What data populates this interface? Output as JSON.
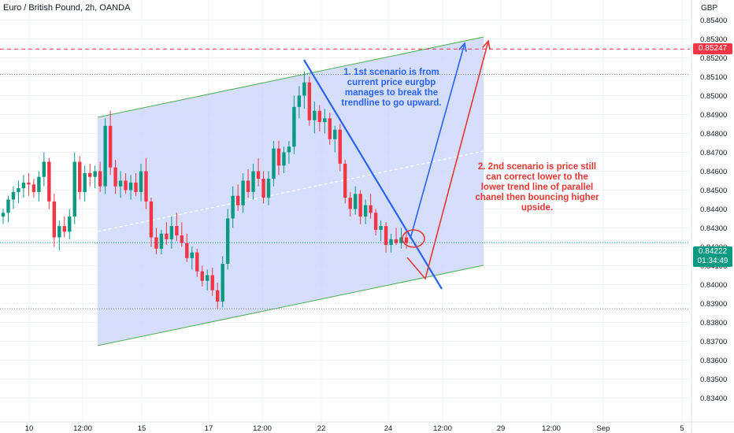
{
  "header": {
    "title": "Euro / British Pound, 2h, OANDA",
    "currency": "GBP"
  },
  "price_labels": {
    "alert_line": "0.85247",
    "current_price": "0.84222",
    "countdown": "01:34:49"
  },
  "annotations": [
    {
      "text": "1. 1st scenario is from current price eurgbp manages to break the trendline to go upward.",
      "color": "#2962ff"
    },
    {
      "text": "2. 2nd scenario is price still can correct lower to the lower trend line of parallel chanel then bouncing higher upside.",
      "color": "#e53935"
    }
  ],
  "colors": {
    "up": "#089981",
    "down": "#f23645",
    "channel_fill": "#c7d3fb",
    "channel_line": "#4caf50",
    "blue_line": "#2962ff",
    "red_line": "#e53935",
    "grid": "#f0f3fa",
    "axis_text": "#131722"
  },
  "chart_data": {
    "type": "candlestick",
    "ylim": [
      0.834,
      0.8545
    ],
    "y_ticks": [
      "0.85400",
      "0.85300",
      "0.85200",
      "0.85100",
      "0.85000",
      "0.84900",
      "0.84800",
      "0.84700",
      "0.84600",
      "0.84500",
      "0.84400",
      "0.84300",
      "0.84200",
      "0.84100",
      "0.84000",
      "0.83900",
      "0.83800",
      "0.83700",
      "0.83600",
      "0.83500",
      "0.83400"
    ],
    "x_ticks": [
      "10",
      "12:00",
      "15",
      "17",
      "12:00",
      "22",
      "24",
      "12:00",
      "29",
      "12:00",
      "Sep",
      "5"
    ],
    "price_lines": {
      "alert": 0.85247,
      "current": 0.84222,
      "high_dotted": 0.85112,
      "low_dotted": 0.83872
    },
    "candles": [
      [
        0.8436,
        0.844,
        0.8432,
        0.8438
      ],
      [
        0.8438,
        0.8447,
        0.8433,
        0.8445
      ],
      [
        0.8445,
        0.8452,
        0.844,
        0.8449
      ],
      [
        0.8449,
        0.8455,
        0.8443,
        0.8451
      ],
      [
        0.8451,
        0.8458,
        0.8446,
        0.8454
      ],
      [
        0.8454,
        0.8459,
        0.8447,
        0.8453
      ],
      [
        0.8453,
        0.8456,
        0.8446,
        0.8449
      ],
      [
        0.8449,
        0.846,
        0.8444,
        0.8457
      ],
      [
        0.8457,
        0.847,
        0.8452,
        0.8465
      ],
      [
        0.8465,
        0.8467,
        0.844,
        0.8444
      ],
      [
        0.8444,
        0.8448,
        0.842,
        0.8425
      ],
      [
        0.8425,
        0.8434,
        0.8418,
        0.8431
      ],
      [
        0.8431,
        0.8436,
        0.8425,
        0.8428
      ],
      [
        0.8428,
        0.844,
        0.8424,
        0.8436
      ],
      [
        0.8436,
        0.847,
        0.8432,
        0.8465
      ],
      [
        0.8465,
        0.8468,
        0.8445,
        0.8449
      ],
      [
        0.8449,
        0.8463,
        0.8444,
        0.8459
      ],
      [
        0.8459,
        0.8464,
        0.8452,
        0.8457
      ],
      [
        0.8457,
        0.8463,
        0.8451,
        0.846
      ],
      [
        0.846,
        0.8465,
        0.8449,
        0.8452
      ],
      [
        0.8452,
        0.8488,
        0.8448,
        0.8484
      ],
      [
        0.8484,
        0.8492,
        0.8458,
        0.8462
      ],
      [
        0.8462,
        0.8466,
        0.8448,
        0.8452
      ],
      [
        0.8452,
        0.846,
        0.8446,
        0.8455
      ],
      [
        0.8455,
        0.8459,
        0.8448,
        0.845
      ],
      [
        0.845,
        0.8458,
        0.8445,
        0.8454
      ],
      [
        0.8454,
        0.8459,
        0.8447,
        0.8449
      ],
      [
        0.8449,
        0.8464,
        0.8444,
        0.846
      ],
      [
        0.846,
        0.8467,
        0.844,
        0.8444
      ],
      [
        0.8444,
        0.8446,
        0.842,
        0.8425
      ],
      [
        0.8425,
        0.843,
        0.8416,
        0.8419
      ],
      [
        0.8419,
        0.8429,
        0.8416,
        0.8427
      ],
      [
        0.8427,
        0.8433,
        0.8421,
        0.8424
      ],
      [
        0.8424,
        0.8436,
        0.8419,
        0.8431
      ],
      [
        0.8431,
        0.8438,
        0.8423,
        0.8426
      ],
      [
        0.8426,
        0.8433,
        0.842,
        0.8422
      ],
      [
        0.8422,
        0.8427,
        0.8412,
        0.8414
      ],
      [
        0.8414,
        0.842,
        0.8408,
        0.8417
      ],
      [
        0.8417,
        0.8419,
        0.8404,
        0.8407
      ],
      [
        0.8407,
        0.841,
        0.8399,
        0.8402
      ],
      [
        0.8402,
        0.8408,
        0.8397,
        0.8405
      ],
      [
        0.8405,
        0.8409,
        0.8394,
        0.8397
      ],
      [
        0.8397,
        0.8401,
        0.8387,
        0.8391
      ],
      [
        0.8391,
        0.8415,
        0.8388,
        0.8411
      ],
      [
        0.8411,
        0.844,
        0.8408,
        0.8435
      ],
      [
        0.8435,
        0.8452,
        0.843,
        0.8447
      ],
      [
        0.8447,
        0.8453,
        0.8439,
        0.8442
      ],
      [
        0.8442,
        0.8459,
        0.8438,
        0.8455
      ],
      [
        0.8455,
        0.8461,
        0.8446,
        0.8449
      ],
      [
        0.8449,
        0.8464,
        0.8445,
        0.846
      ],
      [
        0.846,
        0.8467,
        0.8452,
        0.8456
      ],
      [
        0.8456,
        0.846,
        0.8443,
        0.8446
      ],
      [
        0.8446,
        0.846,
        0.8442,
        0.8456
      ],
      [
        0.8456,
        0.8476,
        0.8452,
        0.8472
      ],
      [
        0.8472,
        0.8476,
        0.8458,
        0.8463
      ],
      [
        0.8463,
        0.8473,
        0.8459,
        0.847
      ],
      [
        0.847,
        0.8476,
        0.8464,
        0.8473
      ],
      [
        0.8473,
        0.85,
        0.8469,
        0.8494
      ],
      [
        0.8494,
        0.8505,
        0.8488,
        0.85
      ],
      [
        0.85,
        0.8513,
        0.8493,
        0.8507
      ],
      [
        0.8507,
        0.851,
        0.8484,
        0.8487
      ],
      [
        0.8487,
        0.8497,
        0.848,
        0.8492
      ],
      [
        0.8492,
        0.8495,
        0.8481,
        0.8486
      ],
      [
        0.8486,
        0.8493,
        0.848,
        0.8488
      ],
      [
        0.8488,
        0.8491,
        0.8474,
        0.8477
      ],
      [
        0.8477,
        0.8484,
        0.847,
        0.8482
      ],
      [
        0.8482,
        0.8485,
        0.846,
        0.8464
      ],
      [
        0.8464,
        0.8466,
        0.8443,
        0.8446
      ],
      [
        0.8446,
        0.8449,
        0.8436,
        0.844
      ],
      [
        0.844,
        0.8452,
        0.8437,
        0.8448
      ],
      [
        0.8448,
        0.845,
        0.8432,
        0.8436
      ],
      [
        0.8436,
        0.8445,
        0.8432,
        0.8442
      ],
      [
        0.8442,
        0.8448,
        0.8435,
        0.8438
      ],
      [
        0.8438,
        0.844,
        0.8426,
        0.8429
      ],
      [
        0.8429,
        0.8434,
        0.8423,
        0.8431
      ],
      [
        0.8431,
        0.8433,
        0.8417,
        0.8421
      ],
      [
        0.8421,
        0.8427,
        0.8417,
        0.8424
      ],
      [
        0.8424,
        0.843,
        0.8421,
        0.8422
      ],
      [
        0.8422,
        0.843,
        0.8419,
        0.8425
      ],
      [
        0.8425,
        0.8428,
        0.8419,
        0.8422
      ]
    ]
  }
}
